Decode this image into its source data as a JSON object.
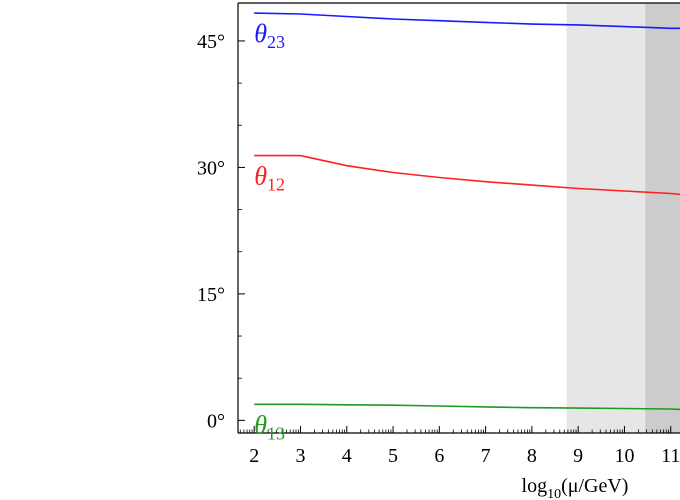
{
  "chart_data": {
    "type": "line",
    "xlabel": {
      "main": "log",
      "sub": "10",
      "rest": "(μ/GeV)"
    },
    "ylabel": "",
    "xlim": [
      1.65,
      11.2
    ],
    "ylim": [
      -1.5,
      49.5
    ],
    "xticks": [
      {
        "value": 2,
        "label": "2"
      },
      {
        "value": 3,
        "label": "3"
      },
      {
        "value": 4,
        "label": "4"
      },
      {
        "value": 5,
        "label": "5"
      },
      {
        "value": 6,
        "label": "6"
      },
      {
        "value": 7,
        "label": "7"
      },
      {
        "value": 8,
        "label": "8"
      },
      {
        "value": 9,
        "label": "9"
      },
      {
        "value": 10,
        "label": "10"
      },
      {
        "value": 11,
        "label": "11"
      }
    ],
    "yticks": [
      {
        "value": 0,
        "label": "0°"
      },
      {
        "value": 15,
        "label": "15°"
      },
      {
        "value": 30,
        "label": "30°"
      },
      {
        "value": 45,
        "label": "45°"
      }
    ],
    "shaded_regions": [
      {
        "x_from": 8.75,
        "x_to": 10.45,
        "color": "#e6e6e6"
      },
      {
        "x_from": 10.45,
        "x_to": 11.2,
        "color": "#cccccc"
      }
    ],
    "series": [
      {
        "name": "θ23",
        "symbol": "θ",
        "subscript": "23",
        "color": "#1a1aff",
        "x": [
          2,
          3,
          4,
          5,
          6,
          7,
          8,
          9,
          10,
          11,
          11.2
        ],
        "y": [
          48.3,
          48.2,
          47.9,
          47.6,
          47.4,
          47.2,
          47.0,
          46.9,
          46.7,
          46.5,
          46.5
        ]
      },
      {
        "name": "θ12",
        "symbol": "θ",
        "subscript": "12",
        "color": "#ff2020",
        "x": [
          2,
          3,
          4,
          5,
          6,
          7,
          8,
          9,
          10,
          11,
          11.2
        ],
        "y": [
          31.4,
          31.4,
          30.2,
          29.4,
          28.8,
          28.3,
          27.9,
          27.5,
          27.2,
          26.9,
          26.8
        ]
      },
      {
        "name": "θ13",
        "symbol": "θ",
        "subscript": "13",
        "color": "#229922",
        "x": [
          2,
          3,
          4,
          5,
          6,
          7,
          8,
          9,
          10,
          11,
          11.2
        ],
        "y": [
          1.9,
          1.9,
          1.85,
          1.8,
          1.7,
          1.6,
          1.5,
          1.45,
          1.4,
          1.35,
          1.3
        ]
      }
    ],
    "grid": false,
    "legend": "inline-labels"
  }
}
